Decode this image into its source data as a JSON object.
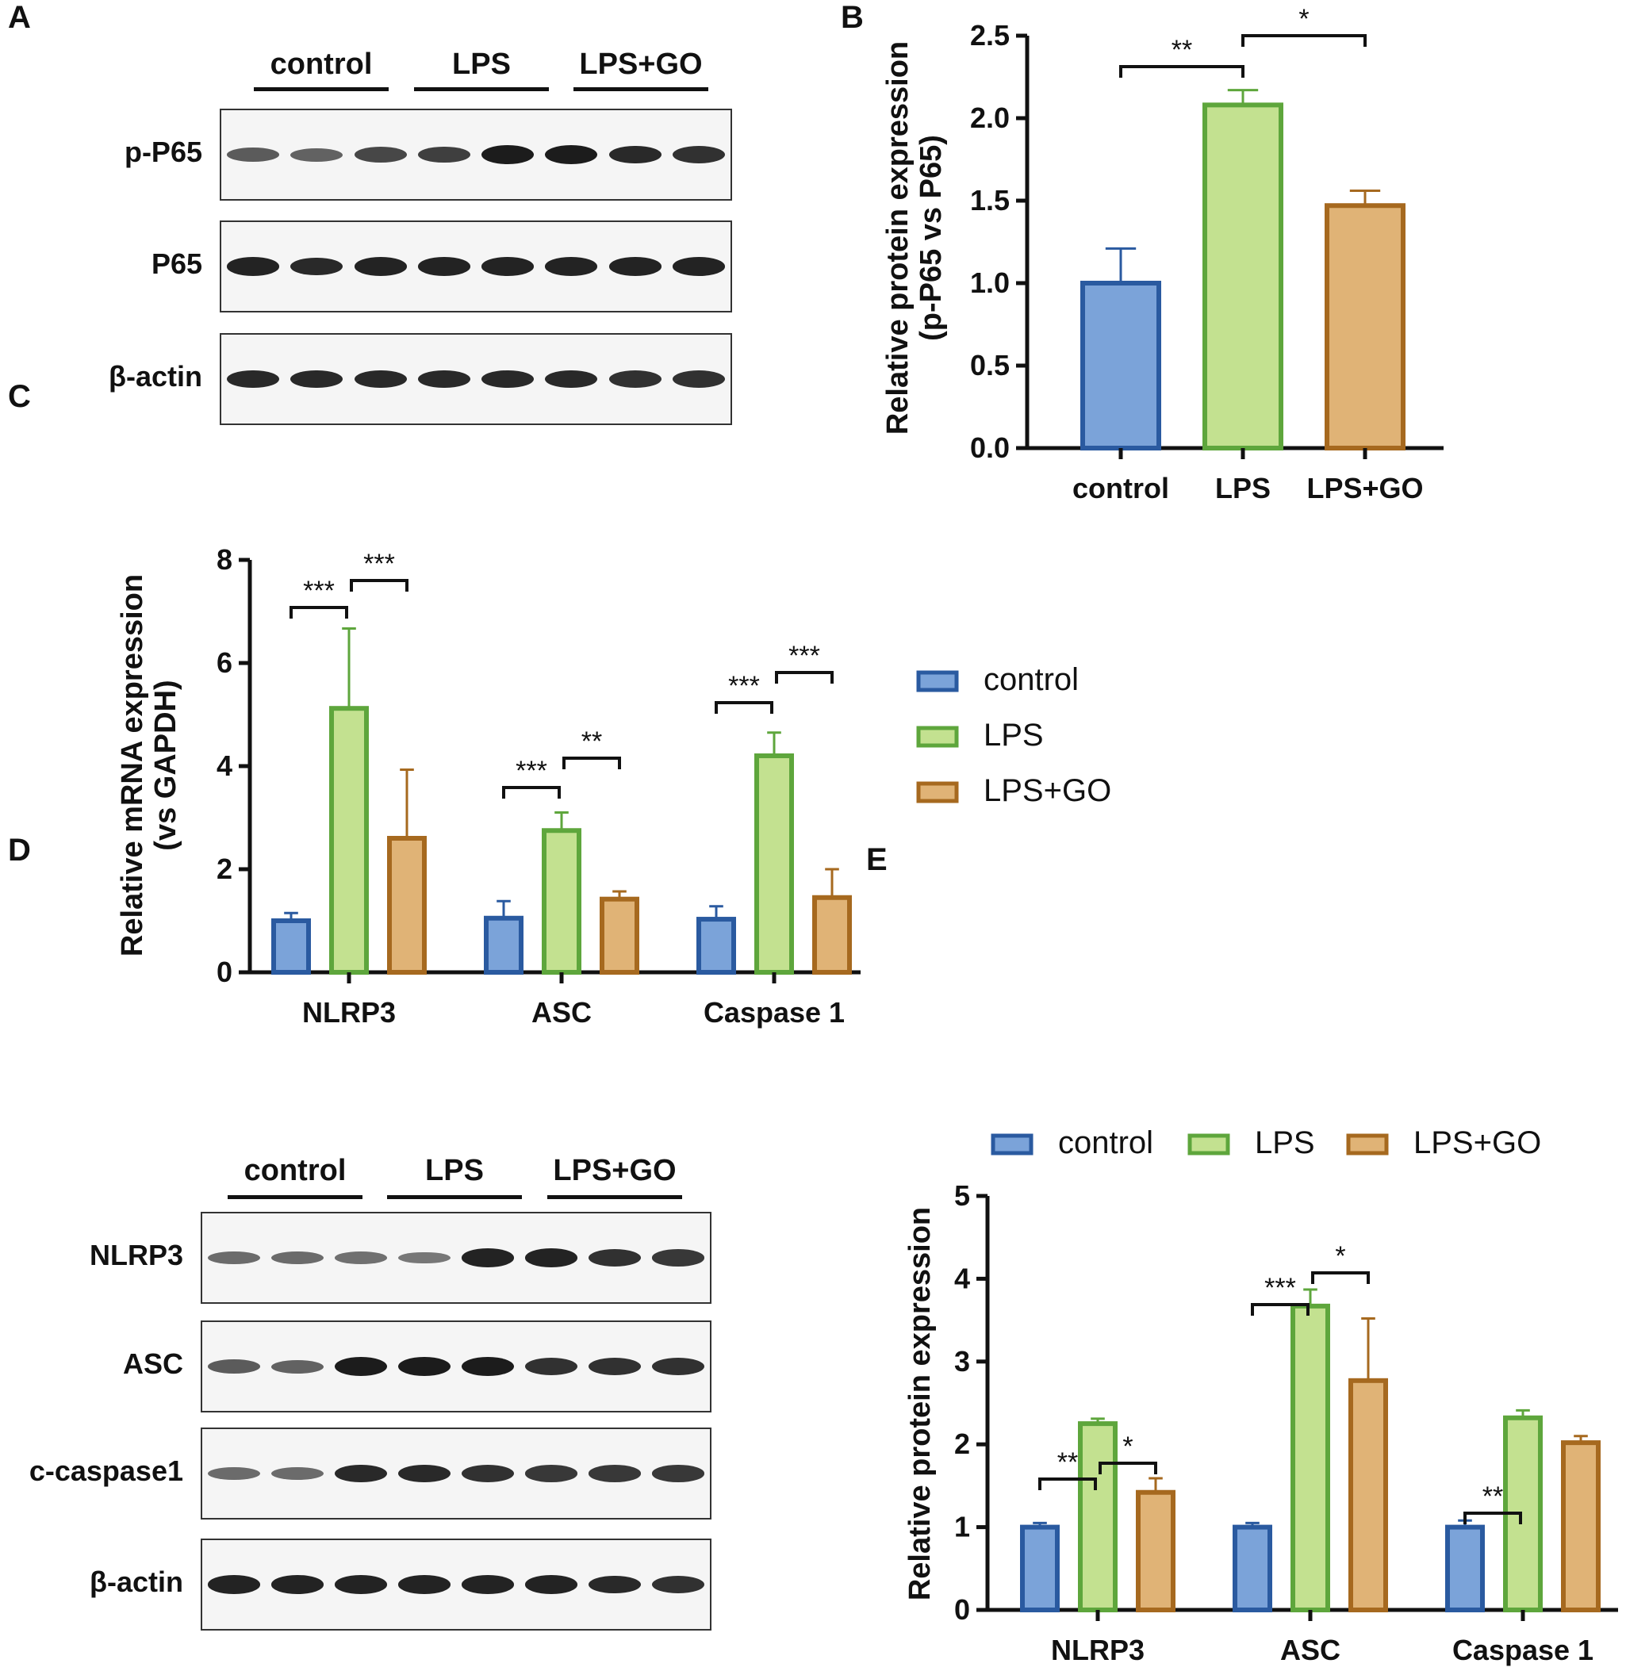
{
  "colors": {
    "control_fill": "#7ba3d9",
    "control_stroke": "#2a5aa0",
    "lps_fill": "#c3e190",
    "lps_stroke": "#5ea63c",
    "lpsgo_fill": "#e0b376",
    "lpsgo_stroke": "#a6691f",
    "axis": "#111111"
  },
  "panels": {
    "A": {
      "letter": "A",
      "groups": [
        "control",
        "LPS",
        "LPS+GO"
      ],
      "rows": [
        {
          "label": "p-P65",
          "intensity": [
            0.55,
            0.5,
            0.7,
            0.75,
            1.0,
            1.0,
            0.9,
            0.85
          ]
        },
        {
          "label": "P65",
          "intensity": [
            0.95,
            0.9,
            0.95,
            0.95,
            0.95,
            0.95,
            0.95,
            0.95
          ]
        },
        {
          "label": "β-actin",
          "intensity": [
            0.9,
            0.9,
            0.9,
            0.9,
            0.9,
            0.9,
            0.85,
            0.85
          ]
        }
      ]
    },
    "D": {
      "letter": "D",
      "groups": [
        "control",
        "LPS",
        "LPS+GO"
      ],
      "rows": [
        {
          "label": "NLRP3",
          "intensity": [
            0.45,
            0.45,
            0.4,
            0.35,
            0.95,
            0.95,
            0.85,
            0.8
          ]
        },
        {
          "label": "ASC",
          "intensity": [
            0.55,
            0.5,
            1.0,
            1.0,
            1.0,
            0.85,
            0.85,
            0.85
          ]
        },
        {
          "label": "c-caspase1",
          "intensity": [
            0.45,
            0.45,
            0.9,
            0.9,
            0.85,
            0.8,
            0.8,
            0.8
          ]
        },
        {
          "label": "β-actin",
          "intensity": [
            0.95,
            0.95,
            0.95,
            0.95,
            0.95,
            0.95,
            0.9,
            0.85
          ]
        }
      ]
    },
    "B": {
      "letter": "B"
    },
    "C": {
      "letter": "C"
    },
    "E": {
      "letter": "E"
    }
  },
  "chart_data": [
    {
      "id": "B",
      "type": "bar",
      "categories": [
        "control",
        "LPS",
        "LPS+GO"
      ],
      "values": [
        1.0,
        2.08,
        1.47
      ],
      "errors": [
        0.21,
        0.09,
        0.09
      ],
      "ylabel": [
        "Relative protein expression",
        "(p-P65 vs P65)"
      ],
      "ylim": [
        0,
        2.5
      ],
      "yticks": [
        "0.0",
        "0.5",
        "1.0",
        "1.5",
        "2.0",
        "2.5"
      ],
      "significance": [
        {
          "from": "control",
          "to": "LPS",
          "label": "**"
        },
        {
          "from": "LPS",
          "to": "LPS+GO",
          "label": "*"
        }
      ]
    },
    {
      "id": "C",
      "type": "bar",
      "categories": [
        "NLRP3",
        "ASC",
        "Caspase 1"
      ],
      "series": [
        {
          "name": "control",
          "values": [
            1.0,
            1.05,
            1.03
          ],
          "errors": [
            0.15,
            0.33,
            0.25
          ]
        },
        {
          "name": "LPS",
          "values": [
            5.12,
            2.75,
            4.2
          ],
          "errors": [
            1.55,
            0.35,
            0.45
          ]
        },
        {
          "name": "LPS+GO",
          "values": [
            2.6,
            1.42,
            1.45
          ],
          "errors": [
            1.33,
            0.15,
            0.55
          ]
        }
      ],
      "ylabel": [
        "Relative mRNA expression",
        "(vs GAPDH)"
      ],
      "ylim": [
        0,
        8
      ],
      "yticks": [
        "0",
        "2",
        "4",
        "6",
        "8"
      ],
      "legend": [
        "control",
        "LPS",
        "LPS+GO"
      ],
      "legend_position": "right",
      "significance": [
        {
          "category": "NLRP3",
          "pair": "control-LPS",
          "label": "***"
        },
        {
          "category": "NLRP3",
          "pair": "LPS-LPS+GO",
          "label": "***"
        },
        {
          "category": "ASC",
          "pair": "control-LPS",
          "label": "***"
        },
        {
          "category": "ASC",
          "pair": "LPS-LPS+GO",
          "label": "**"
        },
        {
          "category": "Caspase 1",
          "pair": "control-LPS",
          "label": "***"
        },
        {
          "category": "Caspase 1",
          "pair": "LPS-LPS+GO",
          "label": "***"
        }
      ]
    },
    {
      "id": "E",
      "type": "bar",
      "categories": [
        "NLRP3",
        "ASC",
        "Caspase 1"
      ],
      "series": [
        {
          "name": "control",
          "values": [
            1.0,
            1.0,
            1.0
          ],
          "errors": [
            0.05,
            0.05,
            0.08
          ]
        },
        {
          "name": "LPS",
          "values": [
            2.25,
            3.67,
            2.32
          ],
          "errors": [
            0.06,
            0.2,
            0.09
          ]
        },
        {
          "name": "LPS+GO",
          "values": [
            1.42,
            2.77,
            2.02
          ],
          "errors": [
            0.17,
            0.75,
            0.08
          ]
        }
      ],
      "ylabel": [
        "Relative protein expression"
      ],
      "ylim": [
        0,
        5
      ],
      "yticks": [
        "0",
        "1",
        "2",
        "3",
        "4",
        "5"
      ],
      "legend": [
        "control",
        "LPS",
        "LPS+GO"
      ],
      "legend_position": "top",
      "significance": [
        {
          "category": "NLRP3",
          "pair": "control-LPS",
          "label": "**"
        },
        {
          "category": "NLRP3",
          "pair": "LPS-LPS+GO",
          "label": "*"
        },
        {
          "category": "ASC",
          "pair": "control-LPS",
          "label": "***"
        },
        {
          "category": "ASC",
          "pair": "LPS-LPS+GO",
          "label": "*"
        },
        {
          "category": "Caspase 1",
          "pair": "control-LPS",
          "label": "**"
        }
      ]
    }
  ]
}
